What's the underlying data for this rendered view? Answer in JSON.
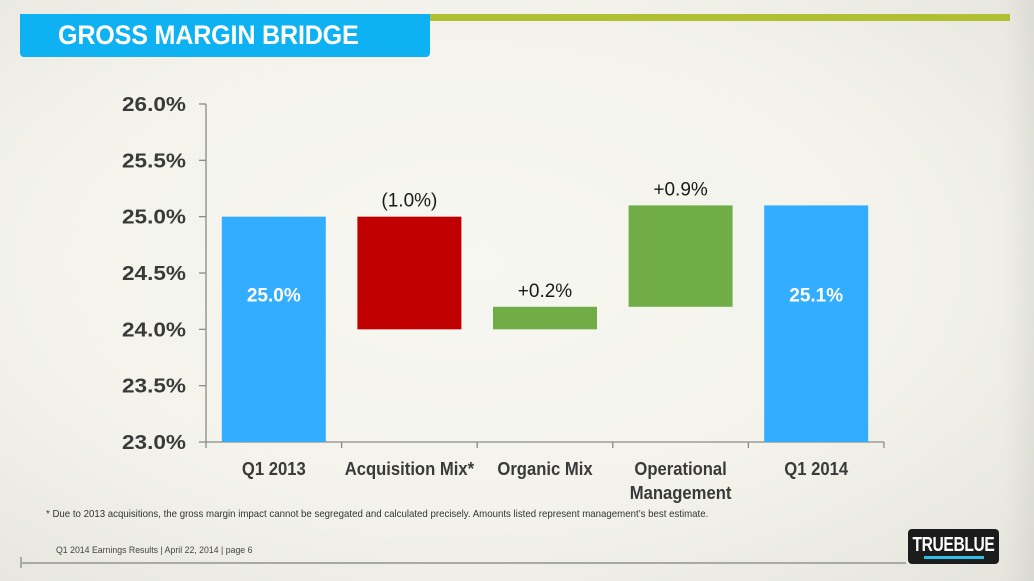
{
  "header": {
    "title": "GROSS MARGIN BRIDGE"
  },
  "colors": {
    "title_bar": "#0eb2f2",
    "accent_line": "#b1c033",
    "base_bar": "#33adff",
    "negative_bar": "#c00000",
    "positive_bar": "#70ad47"
  },
  "chart_data": {
    "type": "bar",
    "subtype": "waterfall",
    "title": "GROSS MARGIN BRIDGE",
    "xlabel": "",
    "ylabel": "",
    "ylim": [
      23.0,
      26.0
    ],
    "yticks": [
      "23.0%",
      "23.5%",
      "24.0%",
      "24.5%",
      "25.0%",
      "25.5%",
      "26.0%"
    ],
    "ytick_values": [
      23.0,
      23.5,
      24.0,
      24.5,
      25.0,
      25.5,
      26.0
    ],
    "grid": false,
    "categories": [
      "Q1 2013",
      "Acquisition Mix*",
      "Organic Mix",
      "Operational Management",
      "Q1 2014"
    ],
    "category_lines": [
      [
        "Q1 2013"
      ],
      [
        "Acquisition Mix*"
      ],
      [
        "Organic Mix"
      ],
      [
        "Operational",
        "Management"
      ],
      [
        "Q1 2014"
      ]
    ],
    "bars": [
      {
        "category": "Q1 2013",
        "kind": "total",
        "start": 23.0,
        "end": 25.0,
        "label": "25.0%",
        "label_position": "inside"
      },
      {
        "category": "Acquisition Mix*",
        "kind": "decrease",
        "start": 25.0,
        "end": 24.0,
        "value": -1.0,
        "label": "(1.0%)",
        "label_position": "above"
      },
      {
        "category": "Organic Mix",
        "kind": "increase",
        "start": 24.0,
        "end": 24.2,
        "value": 0.2,
        "label": "+0.2%",
        "label_position": "above"
      },
      {
        "category": "Operational Management",
        "kind": "increase",
        "start": 24.2,
        "end": 25.1,
        "value": 0.9,
        "label": "+0.9%",
        "label_position": "above"
      },
      {
        "category": "Q1 2014",
        "kind": "total",
        "start": 23.0,
        "end": 25.1,
        "label": "25.1%",
        "label_position": "inside"
      }
    ]
  },
  "footnote": "* Due to 2013 acquisitions, the gross margin impact cannot be segregated and calculated precisely.  Amounts listed represent management’s best estimate.",
  "footer": {
    "text": "Q1 2014 Earnings Results | April 22, 2014  | page 6",
    "logo": "TRUEBLUE"
  }
}
